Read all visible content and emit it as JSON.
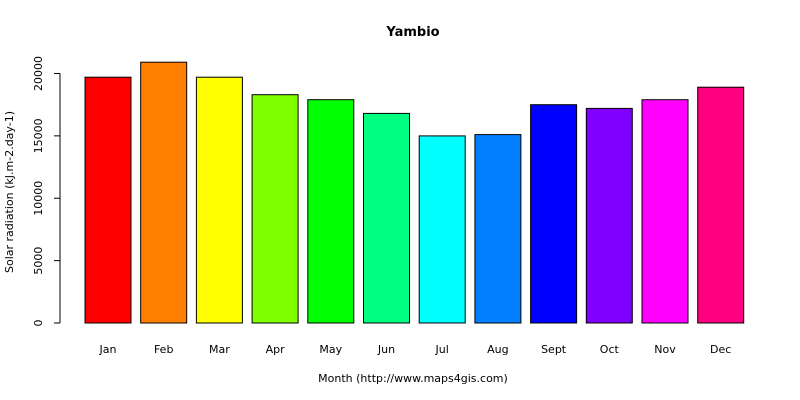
{
  "chart_data": {
    "type": "bar",
    "title": "Yambio",
    "xlabel": "Month (http://www.maps4gis.com)",
    "ylabel": "Solar radiation (kJ.m-2.day-1)",
    "categories": [
      "Jan",
      "Feb",
      "Mar",
      "Apr",
      "May",
      "Jun",
      "Jul",
      "Aug",
      "Sept",
      "Oct",
      "Nov",
      "Dec"
    ],
    "values": [
      19700,
      20900,
      19700,
      18300,
      17900,
      16800,
      15000,
      15100,
      17500,
      17200,
      17900,
      18900
    ],
    "colors": [
      "#ff0000",
      "#ff8000",
      "#ffff00",
      "#80ff00",
      "#00ff00",
      "#00ff80",
      "#00ffff",
      "#0080ff",
      "#0000ff",
      "#8000ff",
      "#ff00ff",
      "#ff0080"
    ],
    "yticks": [
      0,
      5000,
      10000,
      15000,
      20000
    ],
    "ylim": [
      0,
      21000
    ],
    "grid": false,
    "legend": "none"
  }
}
